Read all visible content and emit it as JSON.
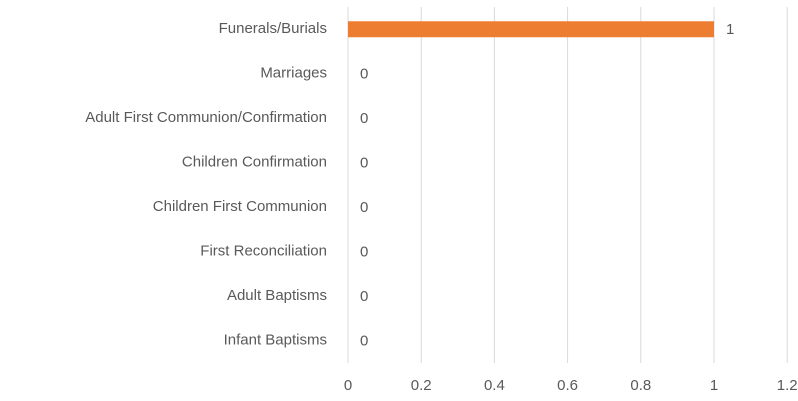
{
  "chart_data": {
    "type": "barh",
    "categories": [
      "Funerals/Burials",
      "Marriages",
      "Adult First Communion/Confirmation",
      "Children Confirmation",
      "Children First Communion",
      "First Reconciliation",
      "Adult Baptisms",
      "Infant Baptisms"
    ],
    "values": [
      1,
      0,
      0,
      0,
      0,
      0,
      0,
      0
    ],
    "color": "#ed7d31",
    "xlim": [
      0,
      1.2
    ],
    "xticks": [
      0,
      0.2,
      0.4,
      0.6,
      0.8,
      1,
      1.2
    ],
    "grid": true
  }
}
